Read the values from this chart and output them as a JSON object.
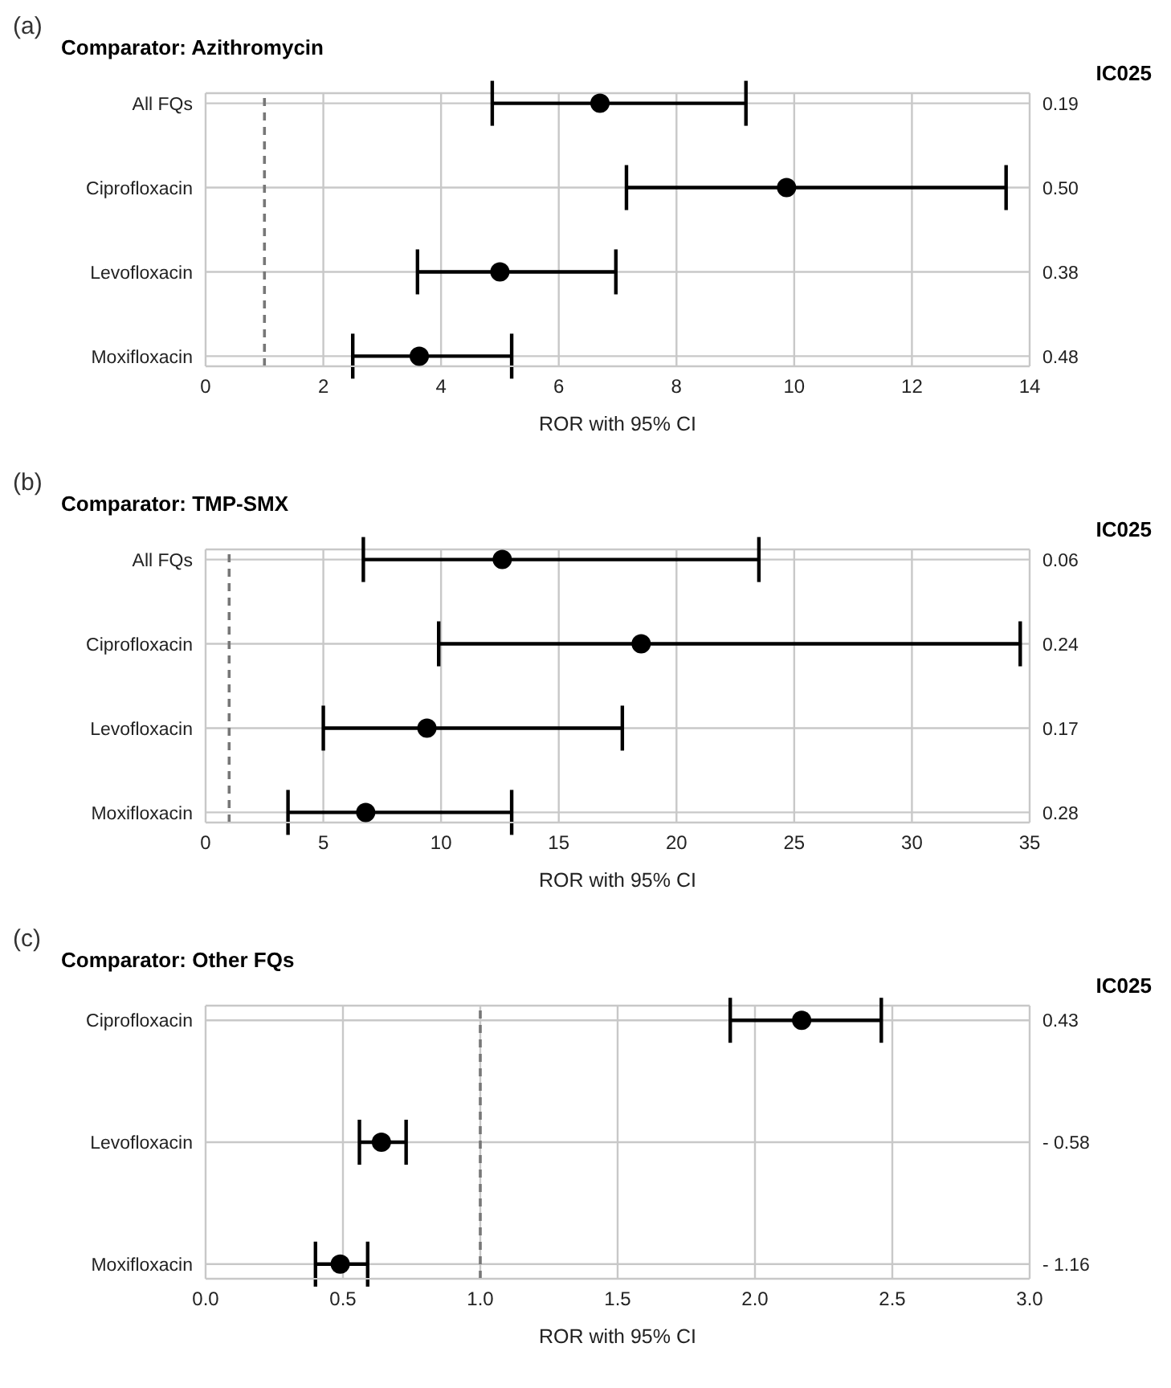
{
  "chart_data": [
    {
      "type": "scatter",
      "orientation": "horizontal",
      "title": "Comparator: Azithromycin",
      "xlabel": "ROR with 95% CI",
      "categories": [
        "All FQs",
        "Ciprofloxacin",
        "Levofloxacin",
        "Moxifloxacin"
      ],
      "values": [
        6.7,
        9.87,
        5.0,
        3.63
      ],
      "errors": [
        [
          4.87,
          9.18
        ],
        [
          7.15,
          13.6
        ],
        [
          3.6,
          6.97
        ],
        [
          2.5,
          5.2
        ]
      ],
      "color": "#000000",
      "marker": "circle",
      "xlim": [
        0,
        14
      ],
      "xticks": [
        0,
        2,
        4,
        6,
        8,
        10,
        12,
        14
      ],
      "grid": true,
      "ref_lines": [
        {
          "axis": "x",
          "value": 1,
          "color": "#777777",
          "line_style": "dashed"
        }
      ],
      "annotations": [
        "(a)",
        "IC025",
        "0.19",
        "0.50",
        "0.38",
        "0.48"
      ]
    },
    {
      "type": "scatter",
      "orientation": "horizontal",
      "title": "Comparator: TMP-SMX",
      "xlabel": "ROR with 95% CI",
      "categories": [
        "All FQs",
        "Ciprofloxacin",
        "Levofloxacin",
        "Moxifloxacin"
      ],
      "values": [
        12.6,
        18.5,
        9.4,
        6.8
      ],
      "errors": [
        [
          6.7,
          23.5
        ],
        [
          9.9,
          34.6
        ],
        [
          5.0,
          17.7
        ],
        [
          3.5,
          13.0
        ]
      ],
      "color": "#000000",
      "marker": "circle",
      "xlim": [
        0,
        35
      ],
      "xticks": [
        0,
        5,
        10,
        15,
        20,
        25,
        30,
        35
      ],
      "grid": true,
      "ref_lines": [
        {
          "axis": "x",
          "value": 1,
          "color": "#777777",
          "line_style": "dashed"
        }
      ],
      "annotations": [
        "(b)",
        "IC025",
        "0.06",
        "0.24",
        "0.17",
        "0.28"
      ]
    },
    {
      "type": "scatter",
      "orientation": "horizontal",
      "title": "Comparator: Other FQs",
      "xlabel": "ROR with 95% CI",
      "categories": [
        "Ciprofloxacin",
        "Levofloxacin",
        "Moxifloxacin"
      ],
      "values": [
        2.17,
        0.64,
        0.49
      ],
      "errors": [
        [
          1.91,
          2.46
        ],
        [
          0.56,
          0.73
        ],
        [
          0.4,
          0.59
        ]
      ],
      "color": "#000000",
      "marker": "circle",
      "xlim": [
        0,
        3
      ],
      "xticks": [
        {
          "value": 0,
          "label": "0.0"
        },
        {
          "value": 0.5,
          "label": "0.5"
        },
        {
          "value": 1,
          "label": "1.0"
        },
        {
          "value": 1.5,
          "label": "1.5"
        },
        {
          "value": 2,
          "label": "2.0"
        },
        {
          "value": 2.5,
          "label": "2.5"
        },
        {
          "value": 3,
          "label": "3.0"
        }
      ],
      "grid": true,
      "ref_lines": [
        {
          "axis": "x",
          "value": 1,
          "color": "#777777",
          "line_style": "dashed"
        }
      ],
      "annotations": [
        "(c)",
        "IC025",
        "0.43",
        "- 0.58",
        "- 1.16"
      ]
    }
  ]
}
